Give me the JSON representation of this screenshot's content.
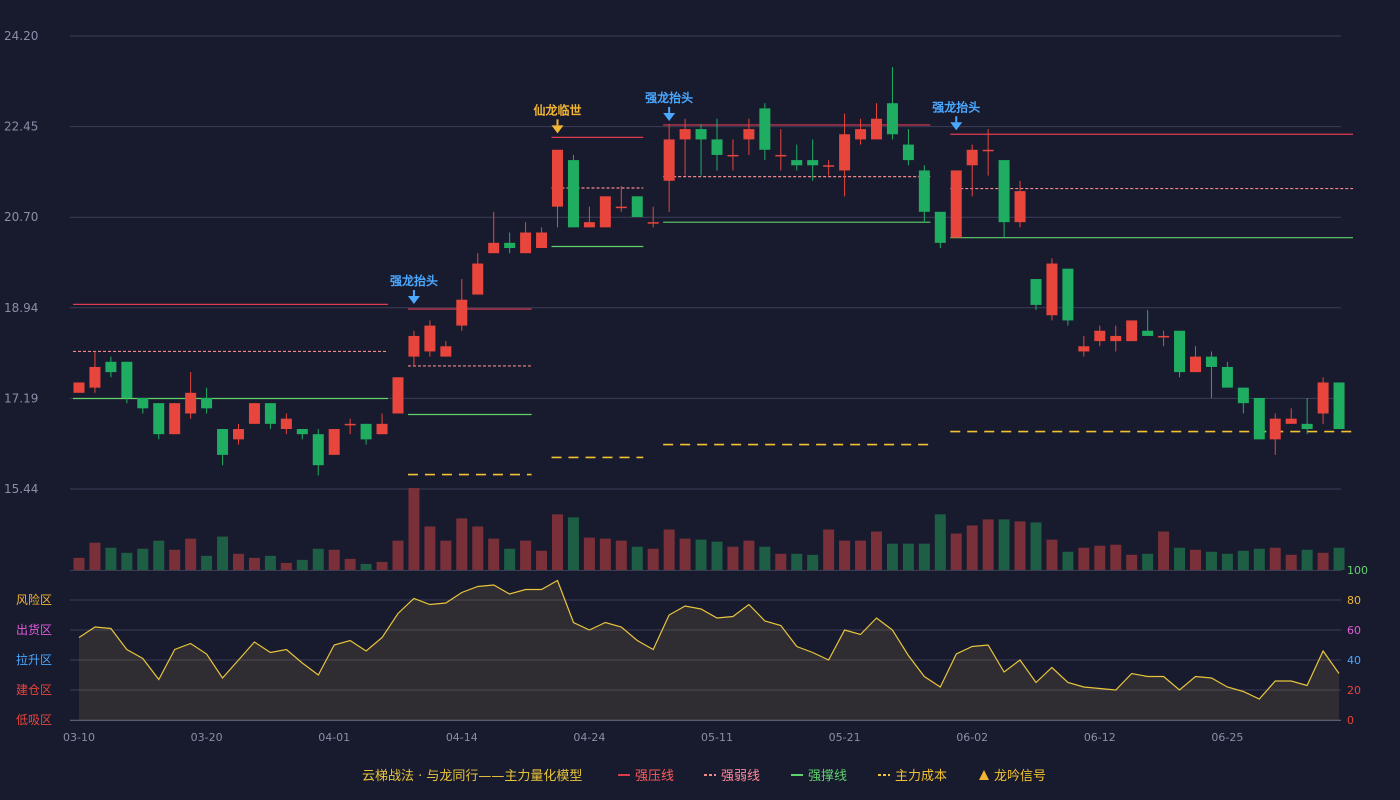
{
  "chart_data": {
    "type": "candlestick",
    "colors": {
      "background": "#181a2e",
      "up": "#e8453c",
      "down": "#1fae61",
      "strong_pressure": "#e03a4e",
      "strong_weak": "#f08a8a",
      "support": "#5fd36b",
      "cost": "#f2c230",
      "indicator_line": "#e8c43c",
      "signal_blue": "#4aa8ff",
      "signal_gold": "#f2b632"
    },
    "price_axis": {
      "ticks": [
        "24.20",
        "22.45",
        "20.70",
        "18.94",
        "17.19",
        "15.44"
      ],
      "min": 15.44,
      "max": 24.2
    },
    "date_labels": [
      {
        "i": 0,
        "label": "03-10"
      },
      {
        "i": 8,
        "label": "03-20"
      },
      {
        "i": 16,
        "label": "04-01"
      },
      {
        "i": 24,
        "label": "04-14"
      },
      {
        "i": 32,
        "label": "04-24"
      },
      {
        "i": 40,
        "label": "05-11"
      },
      {
        "i": 48,
        "label": "05-21"
      },
      {
        "i": 56,
        "label": "06-02"
      },
      {
        "i": 64,
        "label": "06-12"
      },
      {
        "i": 72,
        "label": "06-25"
      }
    ],
    "candles": [
      [
        17.3,
        17.5,
        17.2,
        17.2
      ],
      [
        17.4,
        17.8,
        18.1,
        17.3
      ],
      [
        17.9,
        17.7,
        18.0,
        17.6
      ],
      [
        17.9,
        17.2,
        17.9,
        17.1
      ],
      [
        17.2,
        17.0,
        17.2,
        16.9
      ],
      [
        17.1,
        16.5,
        17.1,
        16.4
      ],
      [
        16.5,
        17.1,
        17.1,
        16.5
      ],
      [
        16.9,
        17.3,
        17.7,
        16.8
      ],
      [
        17.2,
        17.0,
        17.4,
        16.9
      ],
      [
        16.6,
        16.1,
        16.6,
        15.9
      ],
      [
        16.4,
        16.6,
        16.7,
        16.3
      ],
      [
        16.7,
        17.1,
        17.1,
        16.7
      ],
      [
        17.1,
        16.7,
        17.1,
        16.6
      ],
      [
        16.6,
        16.8,
        16.9,
        16.5
      ],
      [
        16.6,
        16.5,
        16.6,
        16.4
      ],
      [
        16.5,
        15.9,
        16.6,
        15.7
      ],
      [
        16.1,
        16.6,
        16.6,
        16.1
      ],
      [
        16.7,
        16.7,
        16.8,
        16.5
      ],
      [
        16.7,
        16.4,
        16.7,
        16.3
      ],
      [
        16.5,
        16.7,
        16.9,
        16.5
      ],
      [
        16.9,
        17.6,
        17.6,
        16.9
      ],
      [
        18.0,
        18.4,
        18.5,
        17.8
      ],
      [
        18.1,
        18.6,
        18.7,
        18.0
      ],
      [
        18.0,
        18.2,
        18.3,
        18.0
      ],
      [
        18.6,
        19.1,
        19.5,
        18.5
      ],
      [
        19.2,
        19.8,
        20.0,
        19.2
      ],
      [
        20.0,
        20.2,
        20.8,
        20.0
      ],
      [
        20.2,
        20.1,
        20.4,
        20.0
      ],
      [
        20.0,
        20.4,
        20.6,
        20.0
      ],
      [
        20.1,
        20.4,
        20.5,
        20.1
      ],
      [
        20.9,
        22.0,
        22.0,
        20.5
      ],
      [
        21.8,
        20.5,
        21.9,
        20.5
      ],
      [
        20.5,
        20.6,
        20.9,
        20.5
      ],
      [
        20.5,
        21.1,
        21.1,
        20.5
      ],
      [
        20.9,
        20.9,
        21.3,
        20.8
      ],
      [
        21.1,
        20.7,
        21.1,
        20.7
      ],
      [
        20.6,
        20.6,
        20.9,
        20.5
      ],
      [
        21.4,
        22.2,
        22.5,
        20.8
      ],
      [
        22.2,
        22.4,
        22.6,
        21.5
      ],
      [
        22.4,
        22.2,
        22.5,
        21.5
      ],
      [
        22.2,
        21.9,
        22.6,
        21.6
      ],
      [
        21.9,
        21.9,
        22.2,
        21.6
      ],
      [
        22.2,
        22.4,
        22.6,
        21.9
      ],
      [
        22.8,
        22.0,
        22.9,
        21.8
      ],
      [
        21.9,
        21.9,
        22.4,
        21.6
      ],
      [
        21.8,
        21.7,
        22.1,
        21.6
      ],
      [
        21.8,
        21.7,
        22.2,
        21.4
      ],
      [
        21.7,
        21.7,
        21.8,
        21.5
      ],
      [
        21.6,
        22.3,
        22.7,
        21.1
      ],
      [
        22.2,
        22.4,
        22.6,
        22.1
      ],
      [
        22.2,
        22.6,
        22.9,
        22.2
      ],
      [
        22.9,
        22.3,
        23.6,
        22.2
      ],
      [
        22.1,
        21.8,
        22.4,
        21.7
      ],
      [
        21.6,
        20.8,
        21.7,
        20.6
      ],
      [
        20.8,
        20.2,
        20.8,
        20.1
      ],
      [
        20.3,
        21.6,
        21.6,
        20.3
      ],
      [
        21.7,
        22.0,
        22.1,
        21.1
      ],
      [
        22.0,
        22.0,
        22.4,
        21.5
      ],
      [
        21.8,
        20.6,
        21.8,
        20.3
      ],
      [
        20.6,
        21.2,
        21.4,
        20.5
      ],
      [
        19.5,
        19.0,
        19.5,
        18.9
      ],
      [
        18.8,
        19.8,
        19.9,
        18.7
      ],
      [
        19.7,
        18.7,
        19.7,
        18.6
      ],
      [
        18.1,
        18.2,
        18.4,
        18.0
      ],
      [
        18.3,
        18.5,
        18.6,
        18.2
      ],
      [
        18.3,
        18.4,
        18.6,
        18.1
      ],
      [
        18.3,
        18.7,
        18.7,
        18.3
      ],
      [
        18.5,
        18.4,
        18.9,
        18.4
      ],
      [
        18.4,
        18.4,
        18.5,
        18.2
      ],
      [
        18.5,
        17.7,
        18.5,
        17.6
      ],
      [
        17.7,
        18.0,
        18.2,
        17.7
      ],
      [
        18.0,
        17.8,
        18.1,
        17.2
      ],
      [
        17.8,
        17.4,
        17.9,
        17.4
      ],
      [
        17.4,
        17.1,
        17.4,
        16.9
      ],
      [
        17.2,
        16.4,
        17.2,
        16.4
      ],
      [
        16.4,
        16.8,
        16.9,
        16.1
      ],
      [
        16.7,
        16.8,
        17.0,
        16.7
      ],
      [
        16.7,
        16.6,
        17.2,
        16.5
      ],
      [
        16.9,
        17.5,
        17.6,
        16.7
      ],
      [
        17.5,
        16.6,
        17.5,
        16.6
      ]
    ],
    "volumes": [
      12,
      27,
      22,
      17,
      21,
      29,
      20,
      31,
      14,
      33,
      16,
      12,
      14,
      7,
      10,
      21,
      20,
      11,
      6,
      8,
      29,
      81,
      43,
      29,
      51,
      43,
      31,
      21,
      29,
      19,
      55,
      52,
      32,
      31,
      29,
      23,
      21,
      40,
      31,
      30,
      28,
      23,
      29,
      23,
      16,
      16,
      15,
      40,
      29,
      29,
      38,
      26,
      26,
      26,
      55,
      36,
      44,
      50,
      50,
      48,
      47,
      30,
      18,
      22,
      24,
      25,
      15,
      16,
      38,
      22,
      20,
      18,
      16,
      19,
      21,
      22,
      15,
      20,
      17,
      22
    ],
    "indicator": [
      55,
      62,
      61,
      47,
      41,
      27,
      47,
      51,
      44,
      28,
      40,
      52,
      45,
      47,
      38,
      30,
      50,
      53,
      46,
      55,
      71,
      81,
      77,
      78,
      85,
      89,
      90,
      84,
      87,
      87,
      93,
      65,
      60,
      65,
      62,
      53,
      47,
      70,
      76,
      74,
      68,
      69,
      77,
      66,
      63,
      49,
      45,
      40,
      60,
      57,
      68,
      60,
      43,
      29,
      22,
      44,
      49,
      50,
      32,
      40,
      25,
      35,
      25,
      22,
      21,
      20,
      31,
      29,
      29,
      20,
      29,
      28,
      22,
      19,
      14,
      26,
      26,
      23,
      46,
      31
    ],
    "indicator_axis": {
      "ticks": [
        "100",
        "80",
        "60",
        "40",
        "20",
        "0"
      ],
      "max": 100
    },
    "zones": [
      "风险区",
      "出货区",
      "拉升区",
      "建仓区",
      "低吸区"
    ],
    "level_segments": [
      {
        "type": "strong_pressure",
        "from": 0,
        "to": 19,
        "value": 19.01
      },
      {
        "type": "strong_weak",
        "from": 0,
        "to": 19,
        "value": 18.1
      },
      {
        "type": "support",
        "from": 0,
        "to": 19,
        "value": 17.19
      },
      {
        "type": "strong_pressure",
        "from": 21,
        "to": 28,
        "value": 18.92
      },
      {
        "type": "strong_weak",
        "from": 21,
        "to": 28,
        "value": 17.82
      },
      {
        "type": "support",
        "from": 21,
        "to": 28,
        "value": 16.88
      },
      {
        "type": "cost",
        "from": 21,
        "to": 28,
        "value": 15.72
      },
      {
        "type": "strong_pressure",
        "from": 30,
        "to": 35,
        "value": 22.24
      },
      {
        "type": "strong_weak",
        "from": 30,
        "to": 35,
        "value": 21.26
      },
      {
        "type": "support",
        "from": 30,
        "to": 35,
        "value": 20.13
      },
      {
        "type": "cost",
        "from": 30,
        "to": 35,
        "value": 16.05
      },
      {
        "type": "strong_pressure",
        "from": 37,
        "to": 53,
        "value": 22.48
      },
      {
        "type": "strong_weak",
        "from": 37,
        "to": 53,
        "value": 21.48
      },
      {
        "type": "support",
        "from": 37,
        "to": 53,
        "value": 20.6
      },
      {
        "type": "cost",
        "from": 37,
        "to": 53,
        "value": 16.3
      },
      {
        "type": "strong_pressure",
        "from": 55,
        "to": 79.5,
        "value": 22.3
      },
      {
        "type": "strong_weak",
        "from": 55,
        "to": 79.5,
        "value": 21.25
      },
      {
        "type": "support",
        "from": 55,
        "to": 79.5,
        "value": 20.3
      },
      {
        "type": "cost",
        "from": 55,
        "to": 79.5,
        "value": 16.55
      }
    ],
    "signals": [
      {
        "i": 21,
        "label": "强龙抬头",
        "kind": "blue",
        "value": 18.94
      },
      {
        "i": 30,
        "label": "仙龙临世",
        "kind": "gold",
        "value": 22.24
      },
      {
        "i": 37,
        "label": "强龙抬头",
        "kind": "blue",
        "value": 22.48
      },
      {
        "i": 55,
        "label": "强龙抬头",
        "kind": "blue",
        "value": 22.3
      }
    ],
    "legend": {
      "title": "云梯战法 · 与龙同行——主力量化模型",
      "items": [
        {
          "label": "强压线",
          "kind": "strong_pressure"
        },
        {
          "label": "强弱线",
          "kind": "strong_weak"
        },
        {
          "label": "强撑线",
          "kind": "support"
        },
        {
          "label": "主力成本",
          "kind": "cost"
        },
        {
          "label": "龙吟信号",
          "kind": "signal"
        }
      ]
    }
  }
}
